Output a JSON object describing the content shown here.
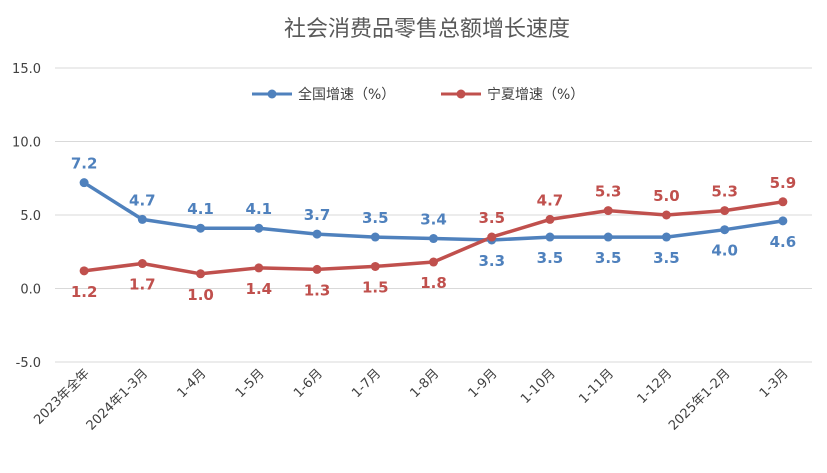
{
  "chart_data": {
    "type": "line",
    "title": "社会消费品零售总额增长速度",
    "xlabel": "",
    "ylabel": "",
    "ylim": [
      -5.0,
      15.0
    ],
    "yticks": [
      "15.0",
      "10.0",
      "5.0",
      "0.0",
      "-5.0"
    ],
    "grid": true,
    "legend_position": "top-center",
    "categories": [
      "2023年全年",
      "2024年1-3月",
      "1-4月",
      "1-5月",
      "1-6月",
      "1-7月",
      "1-8月",
      "1-9月",
      "1-10月",
      "1-11月",
      "1-12月",
      "2025年1-2月",
      "1-3月"
    ],
    "series": [
      {
        "name": "全国增速（%）",
        "color": "#4F81BD",
        "values": [
          7.2,
          4.7,
          4.1,
          4.1,
          3.7,
          3.5,
          3.4,
          3.3,
          3.5,
          3.5,
          3.5,
          4.0,
          4.6
        ],
        "labels": [
          "7.2",
          "4.7",
          "4.1",
          "4.1",
          "3.7",
          "3.5",
          "3.4",
          "3.3",
          "3.5",
          "3.5",
          "3.5",
          "4.0",
          "4.6"
        ]
      },
      {
        "name": "宁夏增速（%）",
        "color": "#C0504D",
        "values": [
          1.2,
          1.7,
          1.0,
          1.4,
          1.3,
          1.5,
          1.8,
          3.5,
          4.7,
          5.3,
          5.0,
          5.3,
          5.9
        ],
        "labels": [
          "1.2",
          "1.7",
          "1.0",
          "1.4",
          "1.3",
          "1.5",
          "1.8",
          "3.5",
          "4.7",
          "5.3",
          "5.0",
          "5.3",
          "5.9"
        ]
      }
    ]
  }
}
